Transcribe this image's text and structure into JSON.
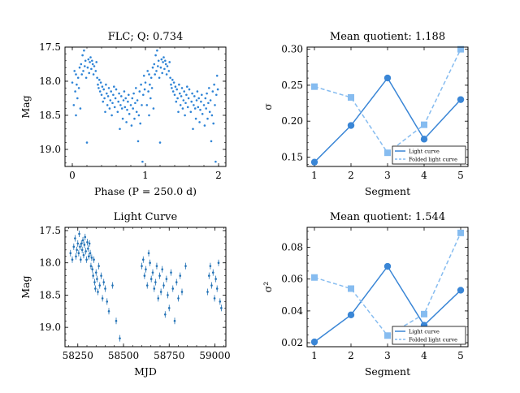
{
  "chart_data": [
    {
      "type": "scatter",
      "title": "FLC; Q: 0.734",
      "xlabel": "Phase (P = 250.0 d)",
      "ylabel": "Mag",
      "xlim": [
        -0.1,
        2.1
      ],
      "ylim": [
        19.25,
        17.5
      ],
      "y_inverted": true,
      "xticks": [
        "0",
        "1",
        "2"
      ],
      "yticks": [
        "17.5",
        "18.0",
        "18.5",
        "19.0"
      ],
      "color": "#2f84d6",
      "series": [
        {
          "x": [
            0.0,
            0.02,
            0.03,
            0.04,
            0.05,
            0.05,
            0.06,
            0.07,
            0.08,
            0.09,
            0.1,
            0.11,
            0.12,
            0.13,
            0.14,
            0.15,
            0.16,
            0.17,
            0.18,
            0.19,
            0.2,
            0.21,
            0.22,
            0.23,
            0.24,
            0.25,
            0.26,
            0.27,
            0.28,
            0.29,
            0.3,
            0.32,
            0.33,
            0.34,
            0.35,
            0.36,
            0.37,
            0.38,
            0.39,
            0.4,
            0.41,
            0.42,
            0.43,
            0.44,
            0.45,
            0.46,
            0.47,
            0.48,
            0.49,
            0.5,
            0.51,
            0.52,
            0.53,
            0.54,
            0.55,
            0.56,
            0.57,
            0.58,
            0.59,
            0.6,
            0.62,
            0.63,
            0.64,
            0.65,
            0.66,
            0.67,
            0.68,
            0.69,
            0.7,
            0.71,
            0.72,
            0.73,
            0.74,
            0.75,
            0.76,
            0.77,
            0.78,
            0.8,
            0.81,
            0.82,
            0.83,
            0.84,
            0.85,
            0.86,
            0.87,
            0.88,
            0.89,
            0.9,
            0.91,
            0.92,
            0.93,
            0.94,
            0.95,
            0.96,
            0.97,
            0.98,
            0.99
          ],
          "y": [
            18.02,
            18.35,
            17.85,
            18.15,
            18.5,
            17.9,
            18.05,
            18.25,
            17.95,
            18.1,
            17.8,
            18.4,
            17.75,
            17.9,
            17.62,
            17.85,
            17.55,
            17.78,
            17.7,
            17.95,
            18.9,
            17.8,
            17.68,
            17.88,
            17.72,
            17.65,
            17.82,
            17.7,
            17.75,
            17.9,
            17.78,
            17.85,
            17.72,
            17.95,
            18.05,
            18.1,
            17.98,
            18.15,
            18.02,
            18.2,
            18.08,
            18.3,
            18.12,
            18.25,
            18.45,
            18.05,
            18.18,
            18.35,
            18.22,
            18.1,
            18.4,
            18.28,
            18.15,
            18.5,
            18.32,
            18.2,
            18.08,
            18.38,
            18.25,
            18.12,
            18.45,
            18.3,
            18.18,
            18.7,
            18.35,
            18.22,
            18.4,
            18.55,
            18.28,
            18.15,
            18.38,
            18.25,
            18.6,
            18.42,
            18.3,
            18.2,
            18.48,
            18.35,
            18.65,
            18.25,
            18.4,
            18.18,
            18.55,
            18.32,
            18.1,
            18.45,
            18.28,
            18.88,
            18.5,
            18.15,
            18.62,
            18.05,
            18.35,
            19.18,
            18.2,
            17.92,
            18.12
          ]
        }
      ]
    },
    {
      "type": "line",
      "title": "Mean quotient: 1.188",
      "xlabel": "Segment",
      "ylabel": "σ",
      "xlim": [
        0.8,
        5.2
      ],
      "ylim": [
        0.137,
        0.303
      ],
      "xticks": [
        "1",
        "2",
        "3",
        "4",
        "5"
      ],
      "yticks": [
        "0.15",
        "0.20",
        "0.25",
        "0.30"
      ],
      "legend": "lower right",
      "x": [
        1,
        2,
        3,
        4,
        5
      ],
      "series": [
        {
          "name": "Light curve",
          "values": [
            0.143,
            0.194,
            0.26,
            0.175,
            0.23
          ],
          "color": "#3a86d6",
          "style": "solid",
          "marker": "circle"
        },
        {
          "name": "Folded light curve",
          "values": [
            0.248,
            0.233,
            0.156,
            0.195,
            0.3
          ],
          "color": "#86bcf0",
          "style": "dashed",
          "marker": "square"
        }
      ]
    },
    {
      "type": "scatter",
      "title": "Light Curve",
      "xlabel": "MJD",
      "ylabel": "Mag",
      "xlim": [
        58180,
        59060
      ],
      "ylim": [
        19.3,
        17.45
      ],
      "y_inverted": true,
      "xticks": [
        "58250",
        "58500",
        "58750",
        "59000"
      ],
      "yticks": [
        "17.5",
        "18.0",
        "18.5",
        "19.0"
      ],
      "color": "#2171b5",
      "error_bars": true,
      "series": [
        {
          "x": [
            58210,
            58220,
            58228,
            58235,
            58240,
            58245,
            58250,
            58255,
            58258,
            58262,
            58266,
            58270,
            58274,
            58278,
            58282,
            58286,
            58290,
            58294,
            58298,
            58302,
            58306,
            58310,
            58314,
            58318,
            58322,
            58326,
            58330,
            58334,
            58338,
            58342,
            58346,
            58350,
            58355,
            58360,
            58365,
            58370,
            58378,
            58385,
            58392,
            58400,
            58410,
            58420,
            58440,
            58460,
            58480,
            58600,
            58608,
            58615,
            58622,
            58630,
            58638,
            58645,
            58652,
            58660,
            58668,
            58675,
            58682,
            58690,
            58698,
            58705,
            58712,
            58720,
            58728,
            58735,
            58742,
            58750,
            58760,
            58770,
            58780,
            58790,
            58800,
            58810,
            58820,
            58840,
            58960,
            58968,
            58975,
            58982,
            58990,
            58998,
            59005,
            59012,
            59020,
            59028,
            59035
          ],
          "y": [
            17.85,
            17.95,
            17.75,
            17.62,
            17.9,
            17.8,
            17.7,
            17.85,
            17.55,
            17.75,
            17.95,
            17.7,
            17.8,
            17.65,
            17.88,
            17.72,
            17.6,
            17.82,
            17.95,
            17.68,
            17.78,
            17.9,
            17.7,
            17.85,
            18.05,
            17.92,
            18.1,
            18.2,
            17.95,
            18.3,
            18.4,
            18.15,
            18.25,
            18.45,
            18.05,
            18.35,
            18.2,
            18.55,
            18.3,
            18.4,
            18.6,
            18.75,
            18.35,
            18.9,
            19.17,
            18.05,
            17.95,
            18.2,
            18.1,
            18.35,
            17.85,
            18.0,
            18.25,
            18.15,
            18.4,
            18.3,
            18.05,
            18.55,
            18.2,
            18.45,
            18.1,
            18.35,
            18.8,
            18.25,
            18.5,
            18.7,
            18.15,
            18.4,
            18.9,
            18.3,
            18.55,
            18.2,
            18.45,
            18.05,
            18.45,
            18.2,
            18.05,
            18.35,
            18.15,
            18.55,
            18.25,
            18.4,
            18.0,
            18.6,
            18.7
          ]
        }
      ]
    },
    {
      "type": "line",
      "title": "Mean quotient: 1.544",
      "xlabel": "Segment",
      "ylabel": "σ²",
      "xlim": [
        0.8,
        5.2
      ],
      "ylim": [
        0.0175,
        0.0925
      ],
      "xticks": [
        "1",
        "2",
        "3",
        "4",
        "5"
      ],
      "yticks": [
        "0.02",
        "0.04",
        "0.06",
        "0.08"
      ],
      "legend": "lower right",
      "x": [
        1,
        2,
        3,
        4,
        5
      ],
      "series": [
        {
          "name": "Light curve",
          "values": [
            0.0205,
            0.0375,
            0.068,
            0.031,
            0.053
          ],
          "color": "#3a86d6",
          "style": "solid",
          "marker": "circle"
        },
        {
          "name": "Folded light curve",
          "values": [
            0.061,
            0.054,
            0.0245,
            0.038,
            0.089
          ],
          "color": "#86bcf0",
          "style": "dashed",
          "marker": "square"
        }
      ]
    }
  ]
}
